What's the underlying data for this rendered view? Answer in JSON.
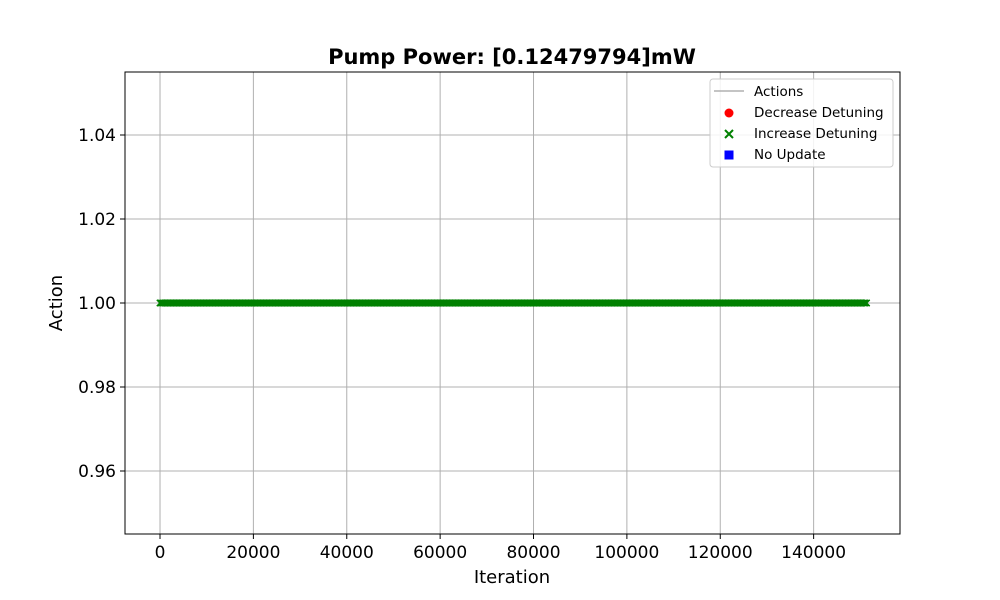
{
  "chart_data": {
    "type": "scatter",
    "title": "Pump Power: [0.12479794]mW",
    "xlabel": "Iteration",
    "ylabel": "Action",
    "xlim": [
      -7500,
      158500
    ],
    "ylim": [
      0.945,
      1.055
    ],
    "xticks": [
      0,
      20000,
      40000,
      60000,
      80000,
      100000,
      120000,
      140000
    ],
    "yticks": [
      0.96,
      0.98,
      1.0,
      1.02,
      1.04
    ],
    "xtick_labels": [
      "0",
      "20000",
      "40000",
      "60000",
      "80000",
      "100000",
      "120000",
      "140000"
    ],
    "ytick_labels": [
      "0.96",
      "0.98",
      "1.00",
      "1.02",
      "1.04"
    ],
    "grid": true,
    "legend_position": "top-right",
    "series": [
      {
        "name": "Actions",
        "kind": "line",
        "color": "#b0b0b0",
        "x": [],
        "y": []
      },
      {
        "name": "Decrease Detuning",
        "kind": "scatter",
        "marker": "circle",
        "color": "#ff0000",
        "x": [],
        "y": []
      },
      {
        "name": "Increase Detuning",
        "kind": "scatter",
        "marker": "x",
        "color": "#008000",
        "x_range": [
          0,
          151600
        ],
        "y_value": 1.0
      },
      {
        "name": "No Update",
        "kind": "scatter",
        "marker": "square",
        "color": "#0000ff",
        "x": [],
        "y": []
      }
    ]
  }
}
